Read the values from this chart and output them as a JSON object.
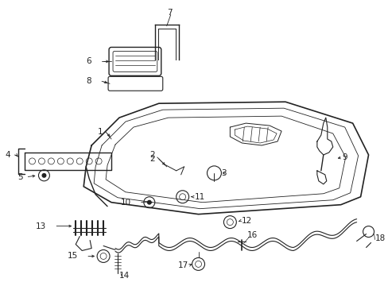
{
  "bg_color": "#ffffff",
  "fig_width": 4.89,
  "fig_height": 3.6,
  "dpi": 100,
  "line_color": "#222222",
  "font_size": 7.5
}
